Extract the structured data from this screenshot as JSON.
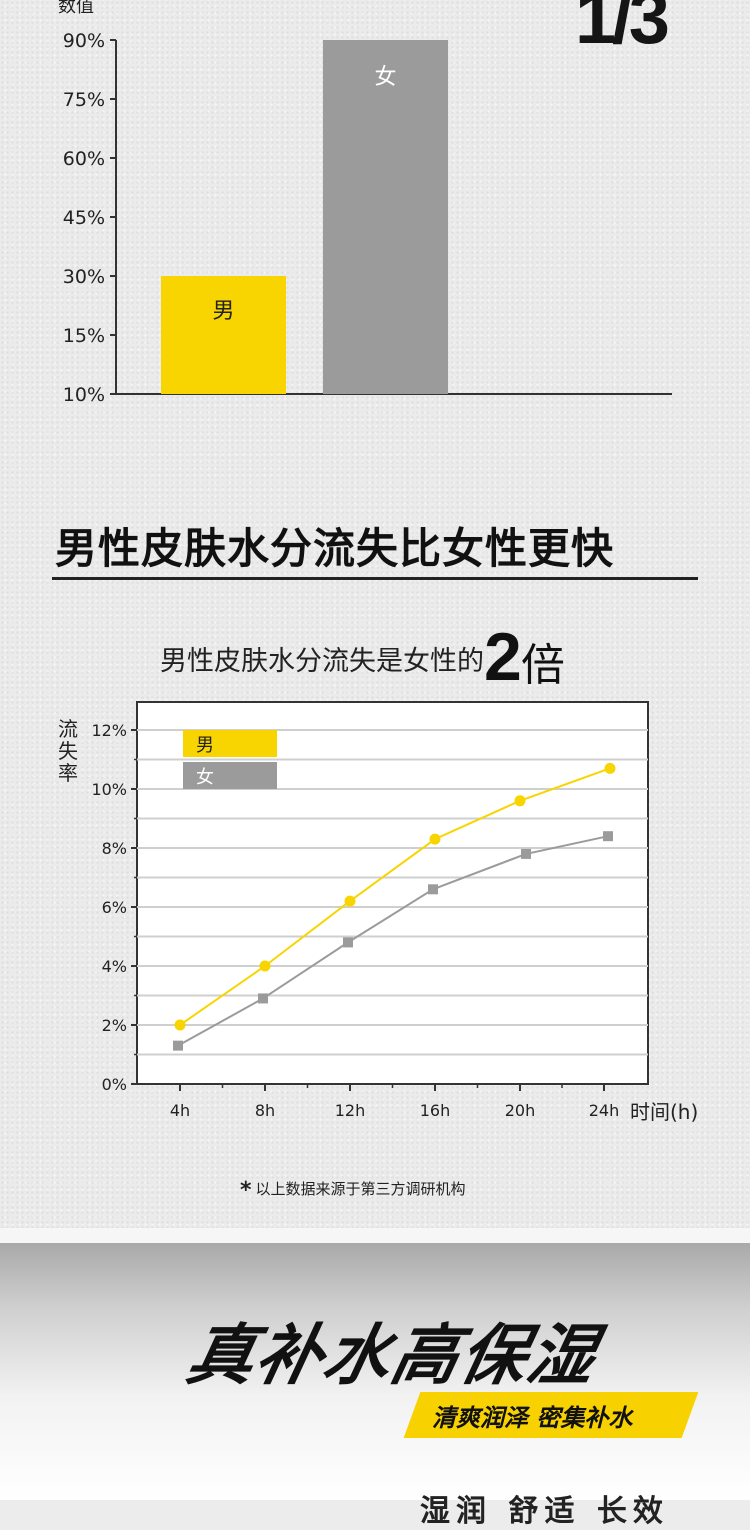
{
  "bar_section": {
    "y_title": "数值",
    "fraction": "1/3"
  },
  "headline": "男性皮肤水分流失比女性更快",
  "subline": {
    "text": "男性皮肤水分流失是女性的",
    "number": "2",
    "unit": "倍"
  },
  "line_section": {
    "y_title": "流失率",
    "x_title": "时间(h)"
  },
  "note": {
    "star": "*",
    "text": "以上数据来源于第三方调研机构"
  },
  "promo": {
    "slogan": "真补水高保湿",
    "ribbon": "清爽润泽 密集补水",
    "cut_text": "湿润 舒适 长效"
  },
  "colors": {
    "male": "#F8D500",
    "female": "#9B9B9B",
    "axis": "#333333"
  },
  "chart_data": [
    {
      "type": "bar",
      "categories": [
        "男",
        "女"
      ],
      "values": [
        30,
        90
      ],
      "ylabel": "数值",
      "ytick_labels": [
        "10%",
        "15%",
        "30%",
        "45%",
        "60%",
        "75%",
        "90%"
      ],
      "ylim": [
        10,
        90
      ],
      "grid": false
    },
    {
      "type": "line",
      "x": [
        "4h",
        "8h",
        "12h",
        "16h",
        "20h",
        "24h"
      ],
      "series": [
        {
          "name": "男",
          "values": [
            2.0,
            4.0,
            6.2,
            8.3,
            9.6,
            10.7
          ],
          "marker": "circle"
        },
        {
          "name": "女",
          "values": [
            1.3,
            2.9,
            4.8,
            6.6,
            7.8,
            8.4
          ],
          "marker": "square"
        }
      ],
      "ylabel": "流失率",
      "xlabel": "时间(h)",
      "ytick_labels": [
        "0%",
        "2%",
        "4%",
        "6%",
        "8%",
        "10%",
        "12%"
      ],
      "ylim": [
        0,
        12
      ],
      "grid": true,
      "legend": "top-left"
    }
  ]
}
